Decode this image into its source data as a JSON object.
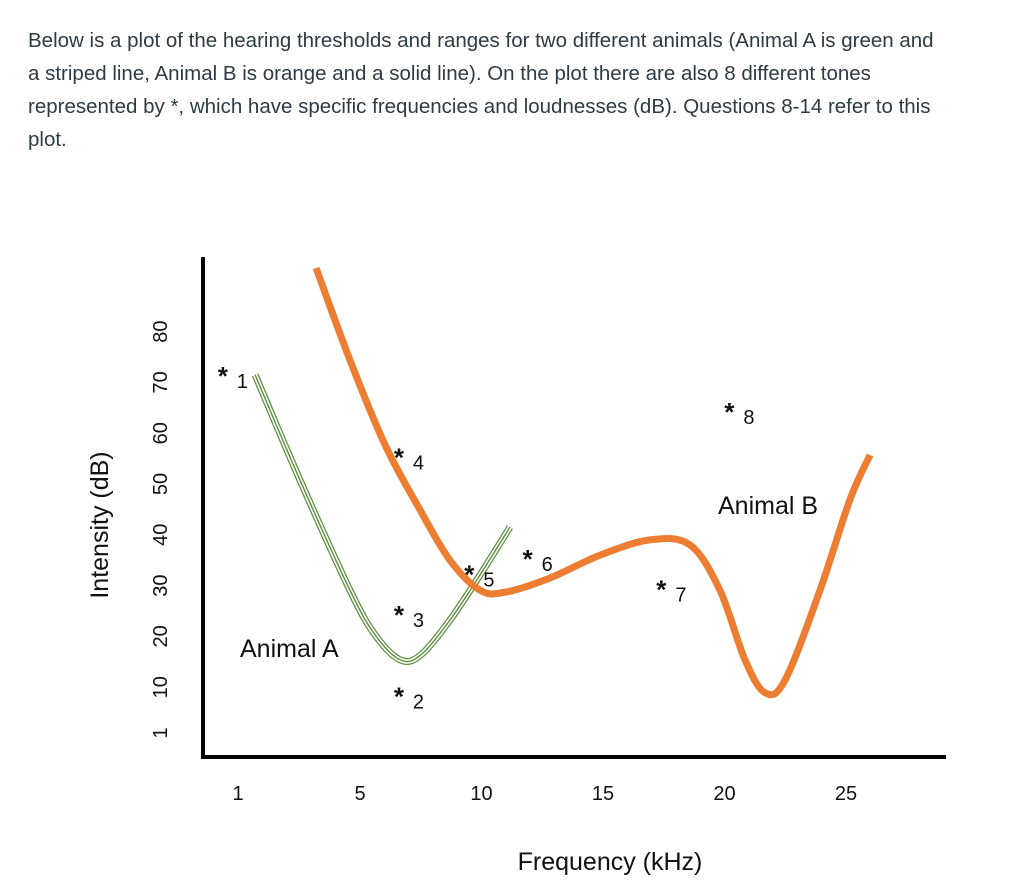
{
  "intro": {
    "lines": [
      "Below is a plot of the hearing thresholds and ranges for two different animals (Animal A is green and",
      "a striped line, Animal B is orange and a solid line).  On the plot there are also 8 different tones",
      "represented by *, which have specific frequencies and loudnesses (dB). Questions 8-14 refer to this",
      "plot."
    ]
  },
  "chart_data": {
    "type": "line",
    "title": "",
    "xlabel": "Frequency (kHz)",
    "ylabel": "Intensity (dB)",
    "x_ticks": [
      1,
      5,
      10,
      15,
      20,
      25
    ],
    "y_ticks": [
      1,
      10,
      20,
      30,
      40,
      50,
      60,
      70,
      80
    ],
    "xlim": [
      0,
      29
    ],
    "ylim": [
      0,
      95
    ],
    "grid": false,
    "series": [
      {
        "name": "Animal A",
        "color": "#5a8f3c",
        "style": "striped",
        "x": [
          1.56,
          3.03,
          4.67,
          5.62,
          6.65,
          7.49,
          8.7,
          9.94,
          11.17
        ],
        "y": [
          71.5,
          50.8,
          29.1,
          20.3,
          15.4,
          16.3,
          23.2,
          32.1,
          41.5
        ]
      },
      {
        "name": "Animal B",
        "color": "#ed7d31",
        "style": "solid",
        "x": [
          3.56,
          4.67,
          6.03,
          7.47,
          8.7,
          9.94,
          10.97,
          12.82,
          14.88,
          16.93,
          18.58,
          19.81,
          20.84,
          21.67,
          22.49,
          23.93,
          25.16,
          25.99
        ],
        "y": [
          92.5,
          74.4,
          57.7,
          44.9,
          35.0,
          29.1,
          28.7,
          31.5,
          36.0,
          39.0,
          38.0,
          29.1,
          15.4,
          8.9,
          11.4,
          29.1,
          46.9,
          55.7
        ]
      }
    ],
    "tones": [
      {
        "label": "1",
        "x": 0.5,
        "y": 72
      },
      {
        "label": "2",
        "x": 6.6,
        "y": 9
      },
      {
        "label": "3",
        "x": 6.6,
        "y": 25
      },
      {
        "label": "4",
        "x": 6.6,
        "y": 56
      },
      {
        "label": "5",
        "x": 9.5,
        "y": 33
      },
      {
        "label": "6",
        "x": 11.9,
        "y": 36
      },
      {
        "label": "7",
        "x": 17.4,
        "y": 30
      },
      {
        "label": "8",
        "x": 20.2,
        "y": 65
      }
    ],
    "marker": "*"
  }
}
